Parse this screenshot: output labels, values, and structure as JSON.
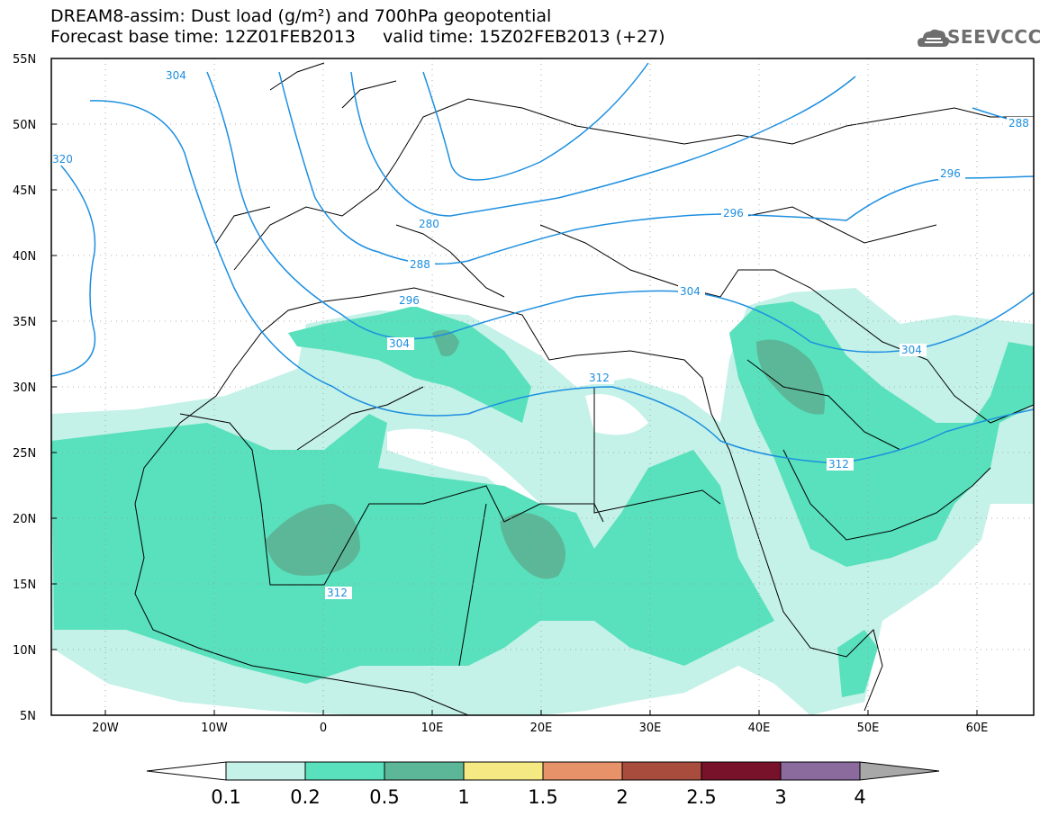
{
  "header": {
    "line1": "DREAM8-assim: Dust load (g/m²) and 700hPa geopotential",
    "line2": "Forecast base time: 12Z01FEB2013     valid time: 15Z02FEB2013 (+27)",
    "logo_text": "SEEVCCC"
  },
  "map": {
    "projection": "lat-lon",
    "lon_range": [
      -25,
      65
    ],
    "lat_range": [
      5,
      55
    ],
    "lat_labels": [
      "55N",
      "50N",
      "45N",
      "40N",
      "35N",
      "30N",
      "25N",
      "20N",
      "15N",
      "10N",
      "5N"
    ],
    "lon_labels": [
      "20W",
      "10W",
      "0",
      "10E",
      "20E",
      "30E",
      "40E",
      "50E",
      "60E"
    ],
    "gridlines": "dotted",
    "geopotential_contour_labels": [
      "304",
      "320",
      "296",
      "288",
      "280",
      "288",
      "296",
      "304",
      "312",
      "312",
      "304",
      "296",
      "312",
      "288"
    ],
    "contour_color": "#1d8fe0"
  },
  "colorbar": {
    "labels": [
      "0.1",
      "0.2",
      "0.5",
      "1",
      "1.5",
      "2",
      "2.5",
      "3",
      "4"
    ],
    "colors": [
      "#ffffff",
      "#c4f1e8",
      "#58e1bc",
      "#5bb797",
      "#f4e983",
      "#e8926a",
      "#a84c3e",
      "#78112a",
      "#8b6a9e",
      "#a8a8a8"
    ]
  },
  "icons": {
    "logo": "cloud-logo-icon"
  }
}
